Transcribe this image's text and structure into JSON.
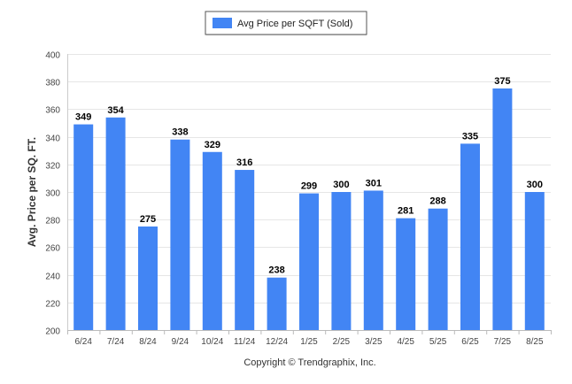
{
  "chart_data": {
    "type": "bar",
    "categories": [
      "6/24",
      "7/24",
      "8/24",
      "9/24",
      "10/24",
      "11/24",
      "12/24",
      "1/25",
      "2/25",
      "3/25",
      "4/25",
      "5/25",
      "6/25",
      "7/25",
      "8/25"
    ],
    "series": [
      {
        "name": "Avg Price per SQFT (Sold)",
        "values": [
          349,
          354,
          275,
          338,
          329,
          316,
          238,
          299,
          300,
          301,
          281,
          288,
          335,
          375,
          300
        ],
        "color": "#4285f4"
      }
    ],
    "ylabel": "Avg. Price per SQ. FT.",
    "xlabel": "",
    "ylim": [
      200,
      400
    ],
    "yticks": [
      200,
      220,
      240,
      260,
      280,
      300,
      320,
      340,
      360,
      380,
      400
    ],
    "grid": true,
    "legend_position": "top-center",
    "data_labels": true
  },
  "footer": {
    "copyright": "Copyright © Trendgraphix, Inc."
  }
}
